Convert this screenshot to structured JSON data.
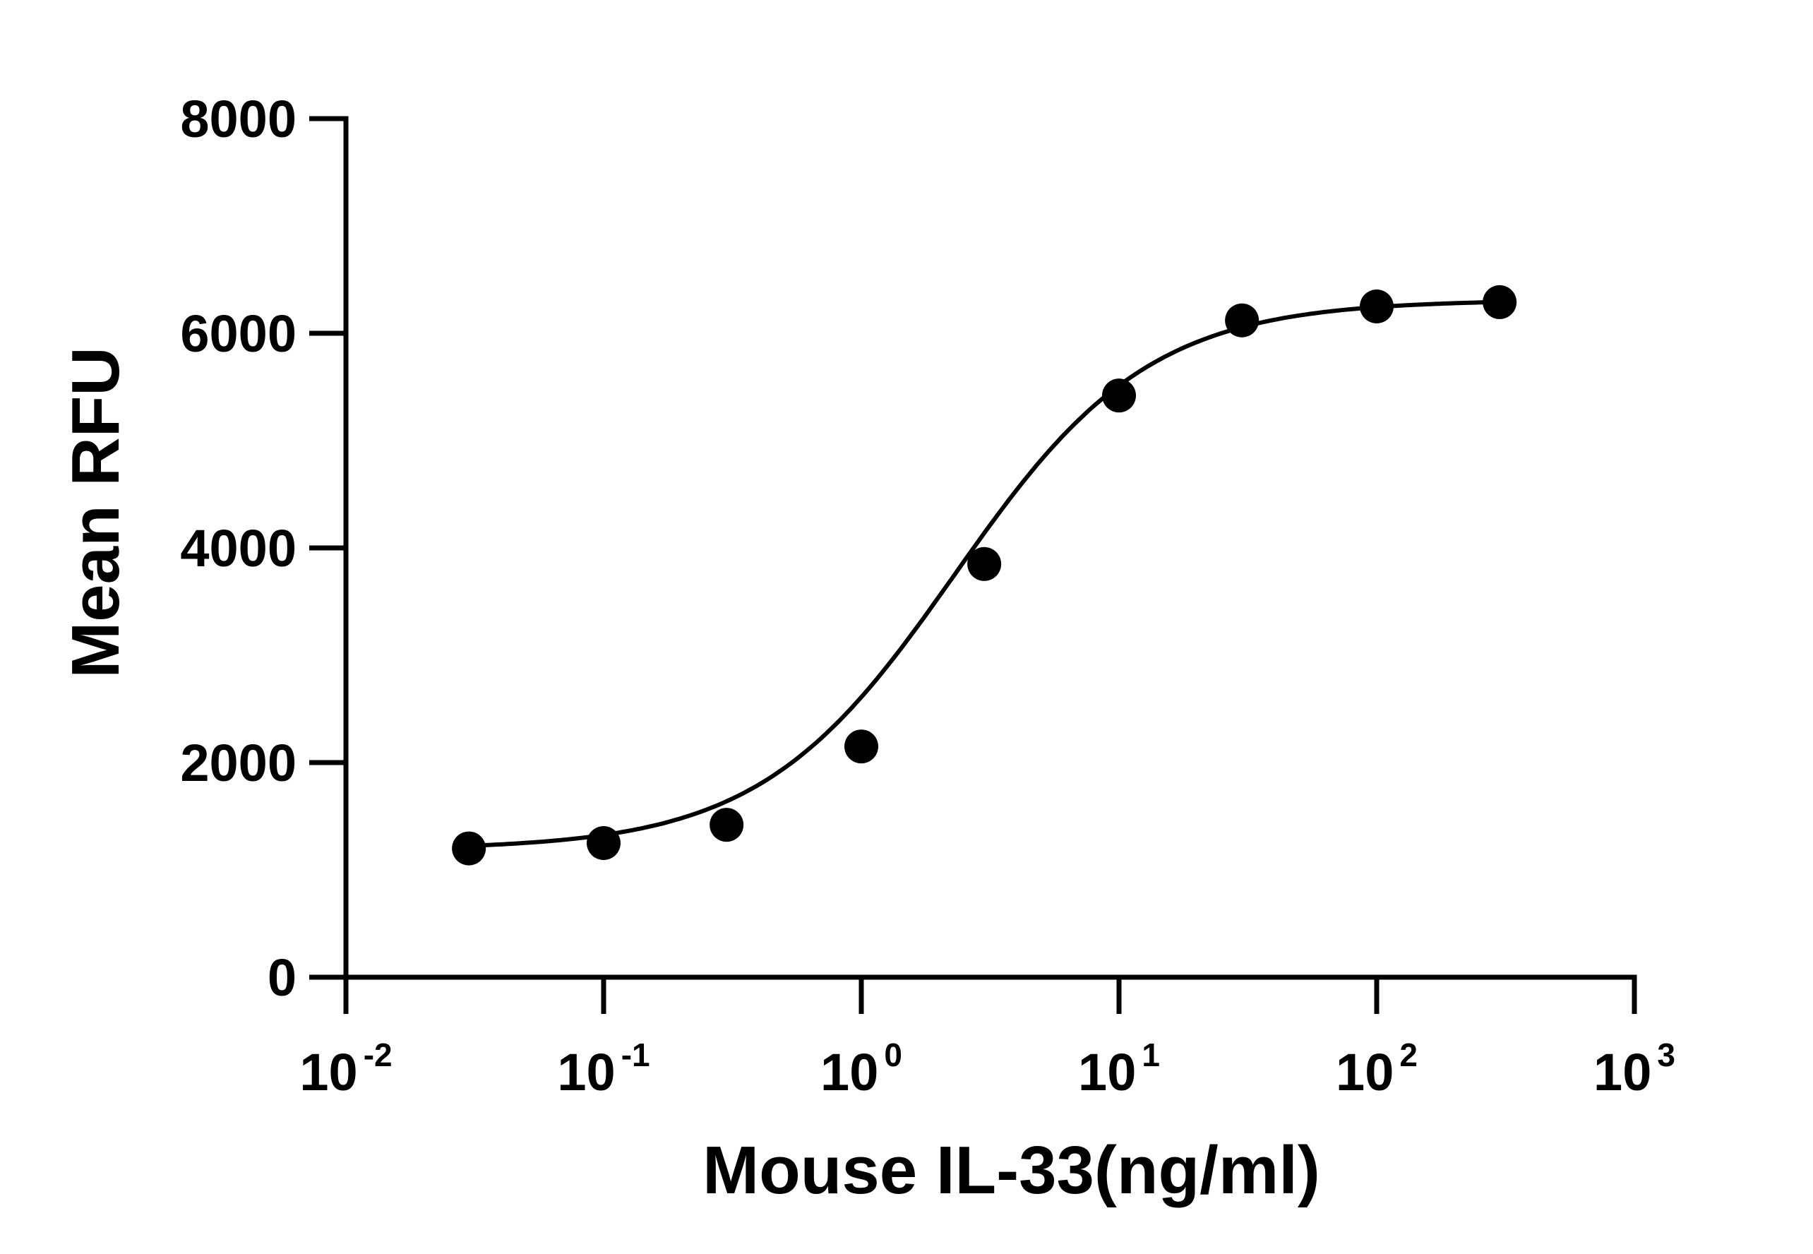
{
  "chart_data": {
    "type": "scatter",
    "xlabel": "Mouse IL-33(ng/ml)",
    "ylabel": "Mean RFU",
    "x_scale": "log",
    "xlim": [
      0.01,
      1000
    ],
    "ylim": [
      0,
      8000
    ],
    "x_ticks": [
      {
        "value": 0.01,
        "base": "10",
        "exp": "-2"
      },
      {
        "value": 0.1,
        "base": "10",
        "exp": "-1"
      },
      {
        "value": 1,
        "base": "10",
        "exp": "0"
      },
      {
        "value": 10,
        "base": "10",
        "exp": "1"
      },
      {
        "value": 100,
        "base": "10",
        "exp": "2"
      },
      {
        "value": 1000,
        "base": "10",
        "exp": "3"
      }
    ],
    "y_ticks": [
      0,
      2000,
      4000,
      6000,
      8000
    ],
    "grid": false,
    "points": [
      {
        "x": 0.03,
        "y": 1200
      },
      {
        "x": 0.1,
        "y": 1250
      },
      {
        "x": 0.3,
        "y": 1420
      },
      {
        "x": 1,
        "y": 2150
      },
      {
        "x": 3,
        "y": 3850
      },
      {
        "x": 10,
        "y": 5420
      },
      {
        "x": 30,
        "y": 6120
      },
      {
        "x": 100,
        "y": 6250
      },
      {
        "x": 300,
        "y": 6290
      }
    ],
    "fit": {
      "type": "4PL",
      "bottom": 1190,
      "top": 6310,
      "ec50": 2.3,
      "hill": 1.15
    },
    "colors": {
      "marks": "#000000",
      "background": "#ffffff"
    }
  }
}
